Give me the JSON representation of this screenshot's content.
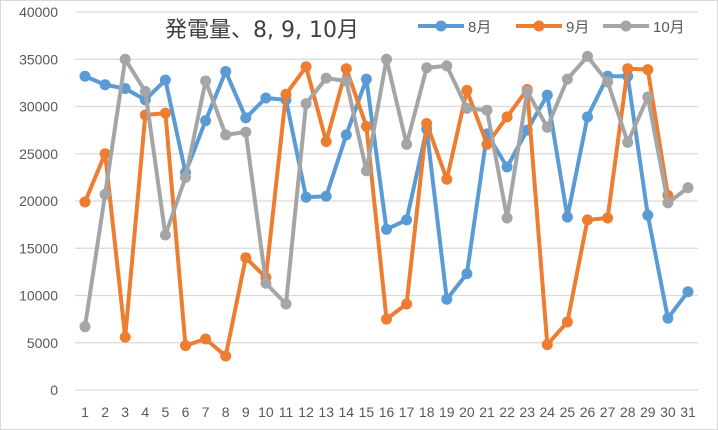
{
  "chart_data": {
    "type": "line",
    "title": "発電量、8, 9, 10月",
    "xlabel": "",
    "ylabel": "",
    "ylim": [
      0,
      40000
    ],
    "yticks": [
      0,
      5000,
      10000,
      15000,
      20000,
      25000,
      30000,
      35000,
      40000
    ],
    "grid": true,
    "legend_position": "top-right",
    "x": [
      1,
      2,
      3,
      4,
      5,
      6,
      7,
      8,
      9,
      10,
      11,
      12,
      13,
      14,
      15,
      16,
      17,
      18,
      19,
      20,
      21,
      22,
      23,
      24,
      25,
      26,
      27,
      28,
      29,
      30,
      31
    ],
    "series": [
      {
        "name": "8月",
        "color": "#5B9BD5",
        "values": [
          33200,
          32300,
          31900,
          30700,
          32800,
          23000,
          28500,
          33700,
          28800,
          30900,
          30700,
          20400,
          20500,
          27000,
          32900,
          17000,
          18000,
          27600,
          9600,
          12300,
          27100,
          23600,
          27500,
          31200,
          18300,
          28900,
          33200,
          33200,
          18500,
          7600,
          10400
        ]
      },
      {
        "name": "9月",
        "color": "#ED7D31",
        "values": [
          19900,
          25000,
          5600,
          29100,
          29300,
          4700,
          5400,
          3600,
          14000,
          11900,
          31300,
          34200,
          26300,
          34000,
          27900,
          7500,
          9100,
          28200,
          22300,
          31700,
          26000,
          28900,
          31800,
          4800,
          7200,
          18000,
          18200,
          34000,
          33900,
          20600,
          null
        ]
      },
      {
        "name": "10月",
        "color": "#A5A5A5",
        "values": [
          6700,
          20700,
          35000,
          31600,
          16400,
          22500,
          32700,
          27000,
          27300,
          11300,
          9100,
          30300,
          33000,
          32700,
          23200,
          35000,
          26000,
          34100,
          34300,
          29800,
          29600,
          18200,
          31600,
          27800,
          32900,
          35300,
          32600,
          26200,
          31000,
          19800,
          21400
        ]
      }
    ]
  }
}
